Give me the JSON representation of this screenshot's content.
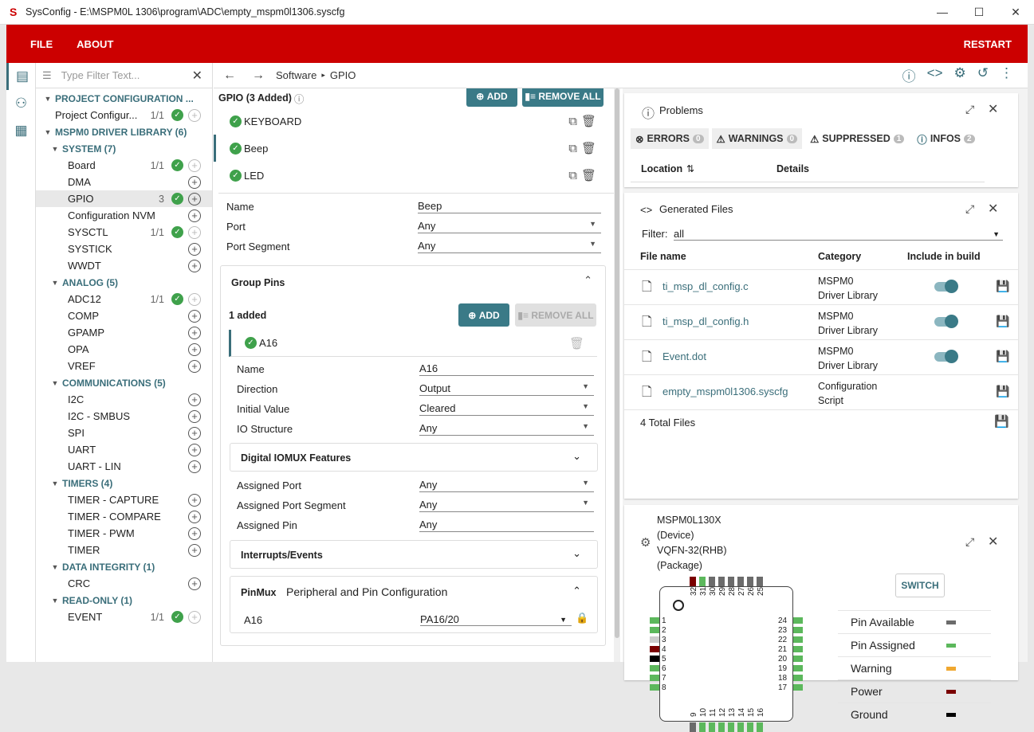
{
  "window": {
    "title": "SysConfig - E:\\MSPM0L 1306\\program\\ADC\\empty_mspm0l1306.syscfg"
  },
  "menu": {
    "file": "FILE",
    "about": "ABOUT",
    "restart": "RESTART"
  },
  "sidebar": {
    "filter_placeholder": "Type Filter Text...",
    "nodes": [
      {
        "label": "PROJECT CONFIGURATION ...",
        "type": "hdr",
        "level": 0
      },
      {
        "label": "Project Configur...",
        "count": "1/1",
        "check": true,
        "plus": true,
        "dim": true,
        "level": 1
      },
      {
        "label": "MSPM0 DRIVER LIBRARY (6)",
        "type": "hdr",
        "level": 0
      },
      {
        "label": "SYSTEM (7)",
        "type": "hdr",
        "level": 1
      },
      {
        "label": "Board",
        "count": "1/1",
        "check": true,
        "plus": true,
        "dim": true,
        "level": 2
      },
      {
        "label": "DMA",
        "plus": true,
        "level": 2
      },
      {
        "label": "GPIO",
        "count": "3",
        "check": true,
        "plus": true,
        "level": 2,
        "sel": true
      },
      {
        "label": "Configuration NVM",
        "plus": true,
        "level": 2
      },
      {
        "label": "SYSCTL",
        "count": "1/1",
        "check": true,
        "plus": true,
        "dim": true,
        "level": 2
      },
      {
        "label": "SYSTICK",
        "plus": true,
        "level": 2
      },
      {
        "label": "WWDT",
        "plus": true,
        "level": 2
      },
      {
        "label": "ANALOG (5)",
        "type": "hdr",
        "level": 1
      },
      {
        "label": "ADC12",
        "count": "1/1",
        "check": true,
        "plus": true,
        "dim": true,
        "level": 2
      },
      {
        "label": "COMP",
        "plus": true,
        "level": 2
      },
      {
        "label": "GPAMP",
        "plus": true,
        "level": 2
      },
      {
        "label": "OPA",
        "plus": true,
        "level": 2
      },
      {
        "label": "VREF",
        "plus": true,
        "level": 2
      },
      {
        "label": "COMMUNICATIONS (5)",
        "type": "hdr",
        "level": 1
      },
      {
        "label": "I2C",
        "plus": true,
        "level": 2
      },
      {
        "label": "I2C - SMBUS",
        "plus": true,
        "level": 2
      },
      {
        "label": "SPI",
        "plus": true,
        "level": 2
      },
      {
        "label": "UART",
        "plus": true,
        "level": 2
      },
      {
        "label": "UART - LIN",
        "plus": true,
        "level": 2
      },
      {
        "label": "TIMERS (4)",
        "type": "hdr",
        "level": 1
      },
      {
        "label": "TIMER - CAPTURE",
        "plus": true,
        "level": 2
      },
      {
        "label": "TIMER - COMPARE",
        "plus": true,
        "level": 2
      },
      {
        "label": "TIMER - PWM",
        "plus": true,
        "level": 2
      },
      {
        "label": "TIMER",
        "plus": true,
        "level": 2
      },
      {
        "label": "DATA INTEGRITY (1)",
        "type": "hdr",
        "level": 1
      },
      {
        "label": "CRC",
        "plus": true,
        "level": 2
      },
      {
        "label": "READ-ONLY (1)",
        "type": "hdr",
        "level": 1
      },
      {
        "label": "EVENT",
        "count": "1/1",
        "check": true,
        "plus": true,
        "dim": true,
        "level": 2
      }
    ]
  },
  "breadcrumb": {
    "a": "Software",
    "b": "GPIO"
  },
  "gpio": {
    "title": "GPIO (3 Added)",
    "add": "ADD",
    "remove_all": "REMOVE ALL",
    "instances": [
      "KEYBOARD",
      "Beep",
      "LED"
    ],
    "name_label": "Name",
    "name_val": "Beep",
    "port_label": "Port",
    "port_val": "Any",
    "seg_label": "Port Segment",
    "seg_val": "Any",
    "group_pins": "Group Pins",
    "added": "1 added",
    "pin": "A16",
    "pin_props": [
      {
        "l": "Name",
        "v": "A16",
        "dd": false
      },
      {
        "l": "Direction",
        "v": "Output",
        "dd": true
      },
      {
        "l": "Initial Value",
        "v": "Cleared",
        "dd": true
      },
      {
        "l": "IO Structure",
        "v": "Any",
        "dd": true
      }
    ],
    "iomux": "Digital IOMUX Features",
    "iomux_props": [
      {
        "l": "Assigned Port",
        "v": "Any",
        "dd": true
      },
      {
        "l": "Assigned Port Segment",
        "v": "Any",
        "dd": true
      },
      {
        "l": "Assigned Pin",
        "v": "Any",
        "dd": false
      }
    ],
    "interrupts": "Interrupts/Events",
    "pinmux": "PinMux",
    "pinmux_sub": "Peripheral and Pin Configuration",
    "pm_pin": "A16",
    "pm_val": "PA16/20"
  },
  "problems": {
    "title": "Problems",
    "errors": "ERRORS",
    "errors_n": "0",
    "warnings": "WARNINGS",
    "warnings_n": "0",
    "suppressed": "SUPPRESSED",
    "suppressed_n": "1",
    "infos": "INFOS",
    "infos_n": "2",
    "col_loc": "Location",
    "col_det": "Details"
  },
  "files": {
    "title": "Generated Files",
    "filter_label": "Filter:",
    "filter_val": "all",
    "col_name": "File name",
    "col_cat": "Category",
    "col_inc": "Include in build",
    "rows": [
      {
        "n": "ti_msp_dl_config.c",
        "c1": "MSPM0",
        "c2": "Driver Library",
        "tog": true
      },
      {
        "n": "ti_msp_dl_config.h",
        "c1": "MSPM0",
        "c2": "Driver Library",
        "tog": true
      },
      {
        "n": "Event.dot",
        "c1": "MSPM0",
        "c2": "Driver Library",
        "tog": true
      },
      {
        "n": "empty_mspm0l1306.syscfg",
        "c1": "Configuration",
        "c2": "Script",
        "tog": false
      }
    ],
    "total": "4 Total Files"
  },
  "device": {
    "l1": "MSPM0L130X",
    "l2": "(Device)",
    "l3": "VQFN-32(RHB)",
    "l4": "(Package)",
    "switch": "SWITCH",
    "legend": [
      {
        "l": "Pin Available",
        "c": "#6b6b6b"
      },
      {
        "l": "Pin Assigned",
        "c": "#5cb85c"
      },
      {
        "l": "Warning",
        "c": "#f0a830"
      },
      {
        "l": "Power",
        "c": "#7a0000"
      },
      {
        "l": "Ground",
        "c": "#000000"
      }
    ],
    "left_pins": [
      "1",
      "2",
      "3",
      "4",
      "5",
      "6",
      "7",
      "8"
    ],
    "right_pins": [
      "24",
      "23",
      "22",
      "21",
      "20",
      "19",
      "18",
      "17"
    ],
    "top_pins": [
      "32",
      "31",
      "30",
      "29",
      "28",
      "27",
      "26",
      "25"
    ],
    "bottom_pins": [
      "9",
      "10",
      "11",
      "12",
      "13",
      "14",
      "15",
      "16"
    ]
  },
  "colors": {
    "accent": "#cc0000",
    "teal": "#3a7a87",
    "green": "#3fa14b"
  }
}
